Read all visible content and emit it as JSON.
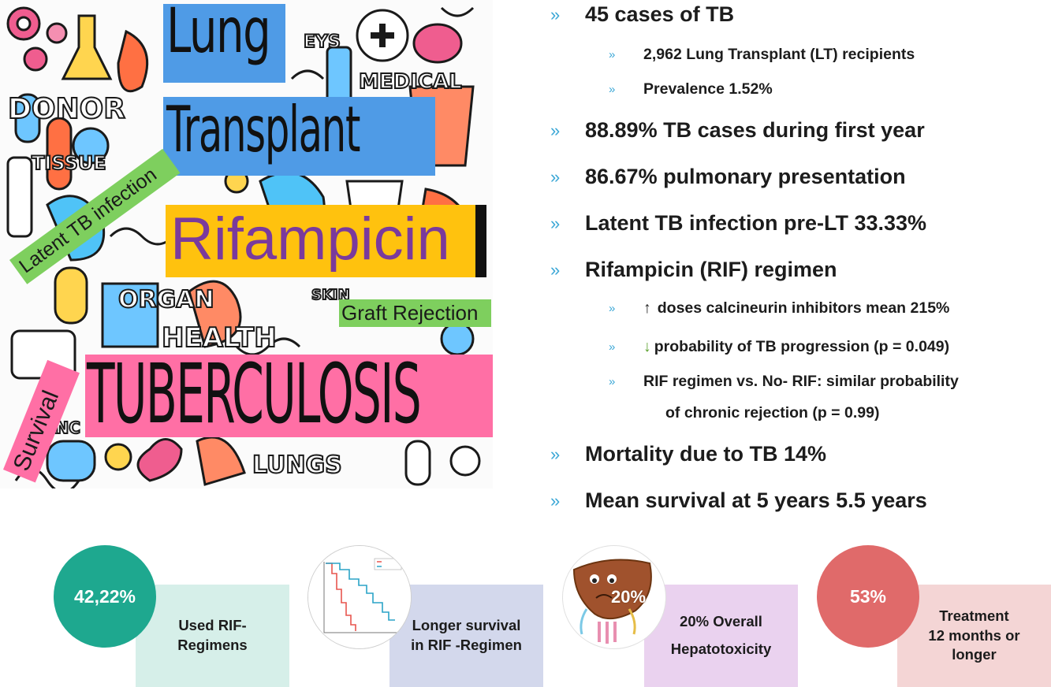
{
  "collage": {
    "lung": "Lung",
    "transplant": "Transplant",
    "rifampicin": "Rifampicin",
    "tuberculosis": "TUBERCULOSIS",
    "latent": "Latent TB infection",
    "graft": "Graft Rejection",
    "survival": "Survival",
    "doodle_words": [
      "DONOR",
      "MEDICAL",
      "EYS",
      "HEALTH",
      "LUNGS",
      "SKIN",
      "ORGAN",
      "TISSUE",
      "ANC"
    ]
  },
  "bullets": [
    {
      "level": 1,
      "text": "45 cases of TB"
    },
    {
      "level": 2,
      "text": "2,962 Lung Transplant (LT) recipients"
    },
    {
      "level": 2,
      "text": "Prevalence 1.52%"
    },
    {
      "level": 1,
      "text": "88.89% TB cases during first year"
    },
    {
      "level": 1,
      "text": "86.67% pulmonary presentation"
    },
    {
      "level": 1,
      "text": "Latent TB infection pre-LT 33.33%"
    },
    {
      "level": 1,
      "text": "Rifampicin (RIF) regimen"
    },
    {
      "level": 2,
      "prefix": "↑",
      "text": "doses calcineurin inhibitors mean 215%"
    },
    {
      "level": 2,
      "prefix": "↓",
      "text": "probability of TB progression (p = 0.049)"
    },
    {
      "level": 2,
      "text": "RIF regimen vs. No- RIF:  similar probability"
    },
    {
      "level": 3,
      "text": "of chronic rejection (p = 0.99)"
    },
    {
      "level": 1,
      "text": "Mortality due to TB 14%"
    },
    {
      "level": 1,
      "text": "Mean survival at 5 years 5.5 years"
    }
  ],
  "bullet_marker": "»",
  "cards": [
    {
      "circle": "42,22%",
      "line1": "Used RIF-",
      "line2": "Regimens",
      "circle_color": "#1ea88f",
      "box_color": "#d6efe9"
    },
    {
      "circle": "",
      "line1": "Longer survival",
      "line2": "in RIF -Regimen",
      "circle_color": "#ffffff",
      "box_color": "#d3d8ec"
    },
    {
      "circle": "20%",
      "line1": "20% Overall",
      "line2": "Hepatotoxicity",
      "circle_color": "#ffffff",
      "box_color": "#ead2ef"
    },
    {
      "circle": "53%",
      "line1": "Treatment",
      "line2": "12 months or",
      "line3": "longer",
      "circle_color": "#e06a6a",
      "box_color": "#f4d5d5"
    }
  ],
  "colors": {
    "marker": "#3ba7d6",
    "down_arrow": "#5aa02c"
  }
}
